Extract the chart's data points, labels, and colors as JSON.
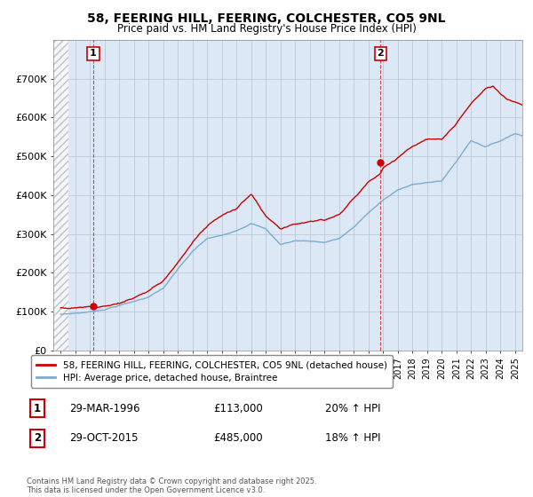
{
  "title": "58, FEERING HILL, FEERING, COLCHESTER, CO5 9NL",
  "subtitle": "Price paid vs. HM Land Registry's House Price Index (HPI)",
  "ylim": [
    0,
    800000
  ],
  "yticks": [
    0,
    100000,
    200000,
    300000,
    400000,
    500000,
    600000,
    700000
  ],
  "ytick_labels": [
    "£0",
    "£100K",
    "£200K",
    "£300K",
    "£400K",
    "£500K",
    "£600K",
    "£700K"
  ],
  "xlim_start": 1993.5,
  "xlim_end": 2025.5,
  "hpi_color": "#7aadcf",
  "price_color": "#cc0000",
  "sale1_x": 1996.23,
  "sale1_y": 113000,
  "sale1_label": "1",
  "sale1_date": "29-MAR-1996",
  "sale1_price": "£113,000",
  "sale1_hpi": "20% ↑ HPI",
  "sale2_x": 2015.83,
  "sale2_y": 485000,
  "sale2_label": "2",
  "sale2_date": "29-OCT-2015",
  "sale2_price": "£485,000",
  "sale2_hpi": "18% ↑ HPI",
  "legend_line1": "58, FEERING HILL, FEERING, COLCHESTER, CO5 9NL (detached house)",
  "legend_line2": "HPI: Average price, detached house, Braintree",
  "footnote": "Contains HM Land Registry data © Crown copyright and database right 2025.\nThis data is licensed under the Open Government Licence v3.0.",
  "background_plot": "#dce8f5",
  "grid_color": "#c0c8d8",
  "hatch_color": "#c8c8c8"
}
